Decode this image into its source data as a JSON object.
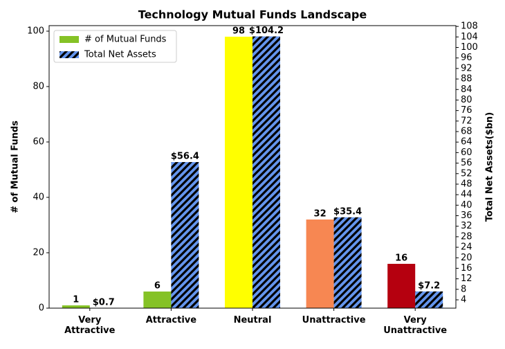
{
  "chart_data": {
    "type": "bar",
    "title": "Technology Mutual Funds Landscape",
    "categories": [
      "Very\nAttractive",
      "Attractive",
      "Neutral",
      "Unattractive",
      "Very\nUnattractive"
    ],
    "series": [
      {
        "name": "# of Mutual Funds",
        "color": "#85c226",
        "colors": [
          "#85c226",
          "#85c226",
          "#ffff00",
          "#f78752",
          "#b5000f"
        ],
        "values": [
          1,
          6,
          98,
          32,
          16
        ]
      },
      {
        "name": "Total Net Assets",
        "color": "#6495ed",
        "hatch": true,
        "axis": "y2",
        "values": [
          0.7,
          56.4,
          104.2,
          35.4,
          7.2
        ],
        "value_labels": [
          "$0.7",
          "$56.4",
          "$104.2",
          "$35.4",
          "$7.2"
        ]
      }
    ],
    "y_label": "# of Mutual Funds",
    "y2_label": "Total Net Assets($bn)",
    "ylim": [
      0,
      102
    ],
    "yticks": [
      0,
      20,
      40,
      60,
      80,
      100
    ],
    "y2lim": [
      0.84,
      108.3
    ],
    "y2ticks": [
      4,
      8,
      12,
      16,
      20,
      24,
      28,
      32,
      36,
      40,
      44,
      48,
      52,
      56,
      60,
      64,
      68,
      72,
      76,
      80,
      84,
      88,
      92,
      96,
      100,
      104,
      108
    ],
    "legend": "upper left"
  }
}
